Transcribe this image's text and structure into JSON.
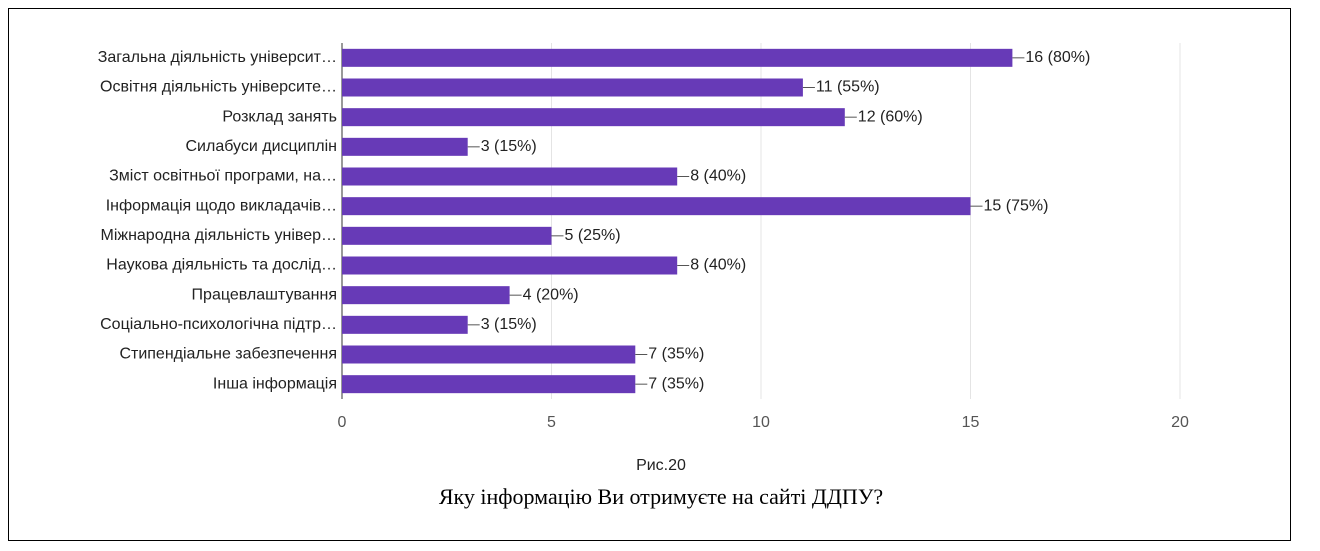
{
  "chart_data": {
    "type": "bar",
    "orientation": "horizontal",
    "categories": [
      "Загальна діяльність університ…",
      "Освітня діяльність університе…",
      "Розклад занять",
      "Силабуси дисциплін",
      "Зміст освітньої програми, на…",
      "Інформація щодо викладачів…",
      "Міжнародна діяльність універ…",
      "Наукова діяльність та дослід…",
      "Працевлаштування",
      "Соціально-психологічна підтр…",
      "Стипендіальне забезпечення",
      "Інша інформація"
    ],
    "values": [
      16,
      11,
      12,
      3,
      8,
      15,
      5,
      8,
      4,
      3,
      7,
      7
    ],
    "value_labels": [
      "16 (80%)",
      "11 (55%)",
      "12 (60%)",
      "3 (15%)",
      "8 (40%)",
      "15 (75%)",
      "5 (25%)",
      "8 (40%)",
      "4 (20%)",
      "3 (15%)",
      "7 (35%)",
      "7 (35%)"
    ],
    "color": "#673ab7",
    "xlim": [
      0,
      20
    ],
    "xticks": [
      0,
      5,
      10,
      15,
      20
    ],
    "grid": true,
    "figure_label": "Рис.20",
    "title": "Яку інформацію Ви отримуєте на сайті ДДПУ?"
  }
}
